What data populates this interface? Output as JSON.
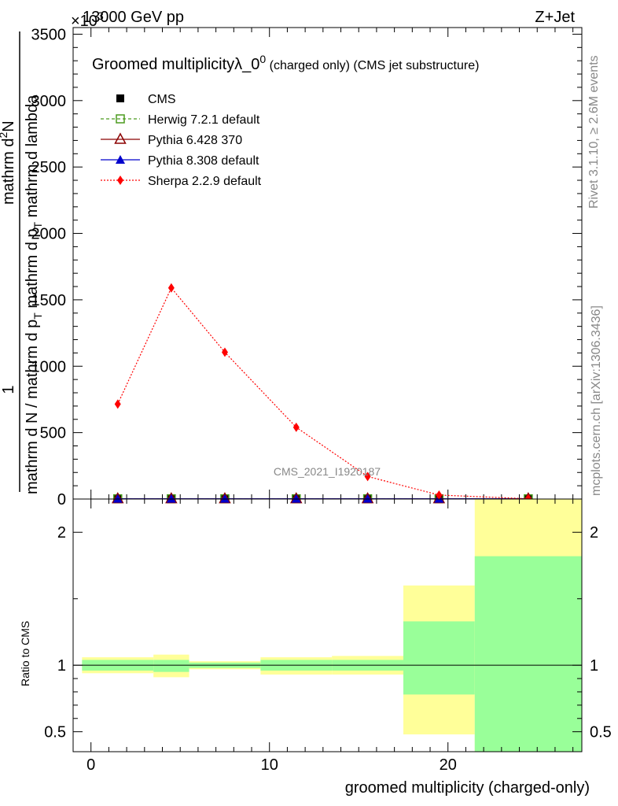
{
  "header": {
    "left_label": "13000 GeV pp",
    "right_label": "Z+Jet",
    "exponent_label": "×10",
    "exponent_power": "3"
  },
  "side": {
    "rivet_label": "Rivet 3.1.10, ≥ 2.6M events",
    "mcplots_label": "mcplots.cern.ch [arXiv:1306.3436]"
  },
  "watermark": "CMS_2021_I1920187",
  "chart_data": [
    {
      "type": "line",
      "title": "Groomed multiplicity λ_0⁰ (charged only) (CMS jet substructure)",
      "title_main": "Groomed multiplicity",
      "title_lambda": "λ_0",
      "title_sup": "0",
      "title_suffix": "(charged only) (CMS jet substructure)",
      "ylabel_lines": [
        "1",
        "mathrm d N / mathrm d p_T mathrm d p_T mathrm d lambda",
        "mathrm d²N"
      ],
      "ylabel_num": "1",
      "ylabel_line2": "mathrm d N / mathrm d p",
      "ylabel_line2b": "T",
      "ylabel_line3": "mathrm d p",
      "ylabel_line3b": "T",
      "ylabel_line4": "mathrm d lambda",
      "ylabel_top": "mathrm d",
      "ylabel_top_sup": "2",
      "ylabel_top_end": "N",
      "ylim": [
        0,
        3550
      ],
      "yticks": [
        {
          "v": 0,
          "label": "0"
        },
        {
          "v": 500,
          "label": "500"
        },
        {
          "v": 1000,
          "label": "1000"
        },
        {
          "v": 1500,
          "label": "1500"
        },
        {
          "v": 2000,
          "label": "2000"
        },
        {
          "v": 2500,
          "label": "2500"
        },
        {
          "v": 3000,
          "label": "3000"
        },
        {
          "v": 3500,
          "label": "3500"
        }
      ],
      "xlim": [
        -1,
        27.5
      ],
      "legend_position": "top-left",
      "series": [
        {
          "name": "CMS",
          "color": "#000000",
          "marker": "square-filled",
          "x": [
            1.5,
            4.5,
            7.5,
            11.5,
            15.5,
            19.5,
            24.5
          ],
          "y": [
            2,
            2,
            2,
            2,
            2,
            2,
            2
          ]
        },
        {
          "name": "Herwig 7.2.1 default",
          "color": "#4b9b1f",
          "marker": "square-open",
          "line": "dashed",
          "x": [
            1.5,
            4.5,
            7.5,
            11.5,
            15.5,
            19.5,
            24.5
          ],
          "y": [
            2,
            2,
            2,
            2,
            2,
            2,
            2
          ]
        },
        {
          "name": "Pythia 6.428 370",
          "color": "#8b0000",
          "marker": "triangle-open",
          "line": "solid",
          "x": [
            1.5,
            4.5,
            7.5,
            11.5,
            15.5,
            19.5,
            24.5
          ],
          "y": [
            2,
            2,
            2,
            2,
            2,
            2,
            2
          ]
        },
        {
          "name": "Pythia 8.308 default",
          "color": "#0000cc",
          "marker": "triangle-filled",
          "line": "solid",
          "x": [
            1.5,
            4.5,
            7.5,
            11.5,
            15.5,
            19.5,
            24.5
          ],
          "y": [
            2,
            2,
            2,
            2,
            2,
            2,
            2
          ]
        },
        {
          "name": "Sherpa 2.2.9 default",
          "color": "#ff0000",
          "marker": "diamond-filled",
          "line": "dotted",
          "x": [
            1.5,
            4.5,
            7.5,
            11.5,
            15.5,
            19.5,
            24.5
          ],
          "y": [
            715,
            1590,
            1105,
            540,
            170,
            30,
            2
          ]
        }
      ]
    },
    {
      "type": "area",
      "ylabel": "Ratio to CMS",
      "xlabel": "groomed multiplicity (charged-only)",
      "ylim": [
        0.35,
        2.25
      ],
      "xlim": [
        -1,
        27.5
      ],
      "reference_line": 1,
      "yticks": [
        {
          "v": 0.5,
          "label": "0.5"
        },
        {
          "v": 1,
          "label": "1"
        },
        {
          "v": 2,
          "label": "2"
        }
      ],
      "xticks": [
        {
          "v": 0,
          "label": "0"
        },
        {
          "v": 10,
          "label": "10"
        },
        {
          "v": 20,
          "label": "20"
        }
      ],
      "bands": [
        {
          "x0": -0.5,
          "x1": 3.5,
          "yellow": [
            0.94,
            1.06
          ],
          "green": [
            0.96,
            1.04
          ]
        },
        {
          "x0": 3.5,
          "x1": 5.5,
          "yellow": [
            0.91,
            1.08
          ],
          "green": [
            0.95,
            1.04
          ]
        },
        {
          "x0": 5.5,
          "x1": 9.5,
          "yellow": [
            0.97,
            1.03
          ],
          "green": [
            0.98,
            1.02
          ]
        },
        {
          "x0": 9.5,
          "x1": 13.5,
          "yellow": [
            0.93,
            1.06
          ],
          "green": [
            0.96,
            1.04
          ]
        },
        {
          "x0": 13.5,
          "x1": 17.5,
          "yellow": [
            0.93,
            1.07
          ],
          "green": [
            0.96,
            1.04
          ]
        },
        {
          "x0": 17.5,
          "x1": 21.5,
          "yellow": [
            0.48,
            1.6
          ],
          "green": [
            0.78,
            1.33
          ]
        },
        {
          "x0": 21.5,
          "x1": 27.5,
          "yellow": [
            0.35,
            2.25
          ],
          "green": [
            0.35,
            1.82
          ]
        }
      ]
    }
  ]
}
